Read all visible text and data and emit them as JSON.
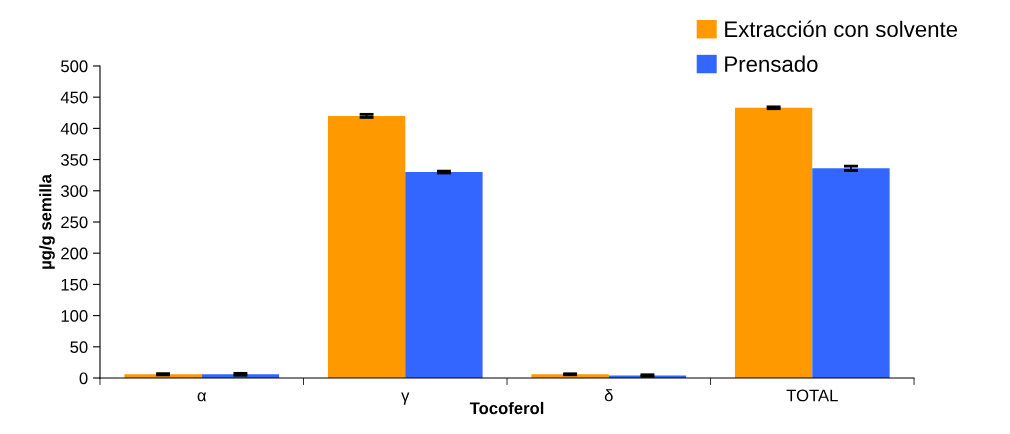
{
  "chart_data": {
    "type": "bar",
    "xlabel": "Tocoferol",
    "ylabel": "µg/g semilla",
    "categories": [
      "α",
      "γ",
      "δ",
      "TOTAL"
    ],
    "series": [
      {
        "name": "Extracción con solvente",
        "color": "#ff9900",
        "values": [
          6,
          420,
          6,
          433
        ],
        "errors": [
          1,
          2.5,
          0.8,
          1.5
        ]
      },
      {
        "name": "Prensado",
        "color": "#3366ff",
        "values": [
          6,
          330,
          4,
          336
        ],
        "errors": [
          1.5,
          1.5,
          1.2,
          3.5
        ]
      }
    ],
    "ylim": [
      0,
      500
    ],
    "yticks": [
      0,
      50,
      100,
      150,
      200,
      250,
      300,
      350,
      400,
      450,
      500
    ],
    "grid": false,
    "legend": "top right"
  }
}
